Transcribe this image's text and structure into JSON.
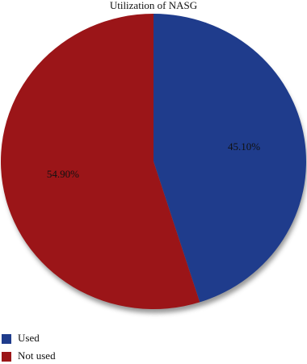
{
  "chart_data": {
    "type": "pie",
    "title": "Utilization of NASG",
    "categories": [
      "Used",
      "Not used"
    ],
    "values": [
      45.1,
      54.9
    ],
    "value_labels": [
      "45.10%",
      "54.90%"
    ],
    "colors": [
      "#1f3c8c",
      "#9b1518"
    ],
    "legend": "bottom-left"
  }
}
